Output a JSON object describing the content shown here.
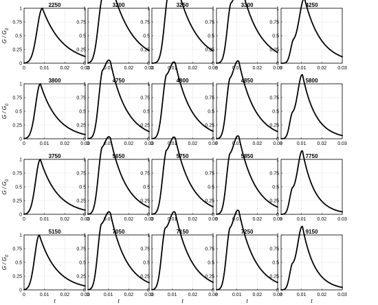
{
  "chart_data": {
    "type": "line",
    "layout": "4x5 grid of small multiples",
    "xlabel": "t",
    "ylabel": "G / G",
    "ylabel_subscript": "0",
    "xlim": [
      0,
      0.03
    ],
    "ylim": [
      0,
      1
    ],
    "xticks": [
      "0",
      "0.01",
      "0.02",
      "0.03"
    ],
    "yticks": [
      "0",
      "0.25",
      "0.5",
      "0.75",
      "1"
    ],
    "grid": true,
    "line_color": "#000000",
    "panels": [
      {
        "title": "2250",
        "peaks": [
          {
            "t": 0.009,
            "h": 1.0,
            "w": 0.0037
          }
        ],
        "tail": 0.01
      },
      {
        "title": "3200",
        "peaks": [
          {
            "t": 0.007,
            "h": 0.95,
            "w": 0.003
          },
          {
            "t": 0.0115,
            "h": 0.83,
            "w": 0.0042
          }
        ],
        "tail": 0.01
      },
      {
        "title": "3250",
        "peaks": [
          {
            "t": 0.008,
            "h": 0.93,
            "w": 0.0028
          },
          {
            "t": 0.012,
            "h": 0.86,
            "w": 0.0042
          }
        ],
        "tail": 0.0095
      },
      {
        "title": "3300",
        "peaks": [
          {
            "t": 0.007,
            "h": 0.9,
            "w": 0.0026
          },
          {
            "t": 0.012,
            "h": 0.92,
            "w": 0.004
          }
        ],
        "tail": 0.009
      },
      {
        "title": "4250",
        "peaks": [
          {
            "t": 0.006,
            "h": 0.35,
            "w": 0.002
          },
          {
            "t": 0.0115,
            "h": 1.0,
            "w": 0.0035
          }
        ],
        "tail": 0.008
      },
      {
        "title": "3800",
        "peaks": [
          {
            "t": 0.008,
            "h": 1.0,
            "w": 0.0033
          }
        ],
        "tail": 0.0085
      },
      {
        "title": "4750",
        "peaks": [
          {
            "t": 0.007,
            "h": 0.93,
            "w": 0.0027
          },
          {
            "t": 0.011,
            "h": 0.84,
            "w": 0.004
          }
        ],
        "tail": 0.008
      },
      {
        "title": "4800",
        "peaks": [
          {
            "t": 0.007,
            "h": 0.92,
            "w": 0.0027
          },
          {
            "t": 0.0115,
            "h": 0.85,
            "w": 0.004
          }
        ],
        "tail": 0.008
      },
      {
        "title": "4850",
        "peaks": [
          {
            "t": 0.0065,
            "h": 0.88,
            "w": 0.0025
          },
          {
            "t": 0.011,
            "h": 0.9,
            "w": 0.0038
          }
        ],
        "tail": 0.008
      },
      {
        "title": "5800",
        "peaks": [
          {
            "t": 0.0055,
            "h": 0.4,
            "w": 0.002
          },
          {
            "t": 0.0105,
            "h": 0.98,
            "w": 0.0032
          }
        ],
        "tail": 0.0065
      },
      {
        "title": "3750",
        "peaks": [
          {
            "t": 0.008,
            "h": 1.0,
            "w": 0.0033
          }
        ],
        "tail": 0.0085
      },
      {
        "title": "5650",
        "peaks": [
          {
            "t": 0.0068,
            "h": 0.94,
            "w": 0.0027
          },
          {
            "t": 0.011,
            "h": 0.83,
            "w": 0.004
          }
        ],
        "tail": 0.008
      },
      {
        "title": "5750",
        "peaks": [
          {
            "t": 0.007,
            "h": 0.92,
            "w": 0.0027
          },
          {
            "t": 0.0115,
            "h": 0.86,
            "w": 0.004
          }
        ],
        "tail": 0.008
      },
      {
        "title": "5850",
        "peaks": [
          {
            "t": 0.0065,
            "h": 0.88,
            "w": 0.0025
          },
          {
            "t": 0.011,
            "h": 0.91,
            "w": 0.0038
          }
        ],
        "tail": 0.008
      },
      {
        "title": "7750",
        "peaks": [
          {
            "t": 0.0055,
            "h": 0.4,
            "w": 0.002
          },
          {
            "t": 0.0105,
            "h": 0.98,
            "w": 0.0032
          }
        ],
        "tail": 0.006
      },
      {
        "title": "5150",
        "peaks": [
          {
            "t": 0.0075,
            "h": 1.0,
            "w": 0.0032
          }
        ],
        "tail": 0.0085
      },
      {
        "title": "7050",
        "peaks": [
          {
            "t": 0.0065,
            "h": 0.96,
            "w": 0.0026
          },
          {
            "t": 0.011,
            "h": 0.85,
            "w": 0.004
          }
        ],
        "tail": 0.008
      },
      {
        "title": "7150",
        "peaks": [
          {
            "t": 0.0065,
            "h": 0.94,
            "w": 0.0026
          },
          {
            "t": 0.0115,
            "h": 0.9,
            "w": 0.004
          }
        ],
        "tail": 0.008
      },
      {
        "title": "7250",
        "peaks": [
          {
            "t": 0.0065,
            "h": 0.9,
            "w": 0.0025
          },
          {
            "t": 0.011,
            "h": 0.92,
            "w": 0.0038
          }
        ],
        "tail": 0.008
      },
      {
        "title": "9150",
        "peaks": [
          {
            "t": 0.0055,
            "h": 0.4,
            "w": 0.002
          },
          {
            "t": 0.0105,
            "h": 0.98,
            "w": 0.0032
          }
        ],
        "tail": 0.006
      }
    ]
  }
}
